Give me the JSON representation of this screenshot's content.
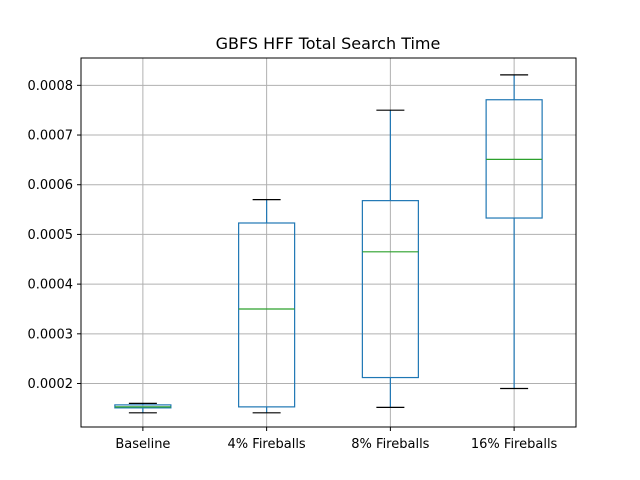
{
  "chart_data": {
    "type": "box",
    "title": "GBFS HFF Total Search Time",
    "xlabel": "",
    "ylabel": "",
    "categories": [
      "Baseline",
      "4% Fireballs",
      "8% Fireballs",
      "16% Fireballs"
    ],
    "boxes": [
      {
        "name": "Baseline",
        "whisker_low": 0.000141,
        "q1": 0.000151,
        "median": 0.000153,
        "q3": 0.000157,
        "whisker_high": 0.00016
      },
      {
        "name": "4% Fireballs",
        "whisker_low": 0.000141,
        "q1": 0.000153,
        "median": 0.00035,
        "q3": 0.000523,
        "whisker_high": 0.00057
      },
      {
        "name": "8% Fireballs",
        "whisker_low": 0.000152,
        "q1": 0.000212,
        "median": 0.000465,
        "q3": 0.000568,
        "whisker_high": 0.00075
      },
      {
        "name": "16% Fireballs",
        "whisker_low": 0.00019,
        "q1": 0.000533,
        "median": 0.000651,
        "q3": 0.000771,
        "whisker_high": 0.000821
      }
    ],
    "ylim": [
      0.0001125,
      0.000855
    ],
    "yticks": [
      0.0002,
      0.0003,
      0.0004,
      0.0005,
      0.0006,
      0.0007,
      0.0008
    ],
    "ytick_labels": [
      "0.0002",
      "0.0003",
      "0.0004",
      "0.0005",
      "0.0006",
      "0.0007",
      "0.0008"
    ],
    "grid": true,
    "colors": {
      "box": "#1f77b4",
      "median": "#2ca02c",
      "cap": "#000000",
      "grid": "#b0b0b0"
    }
  }
}
